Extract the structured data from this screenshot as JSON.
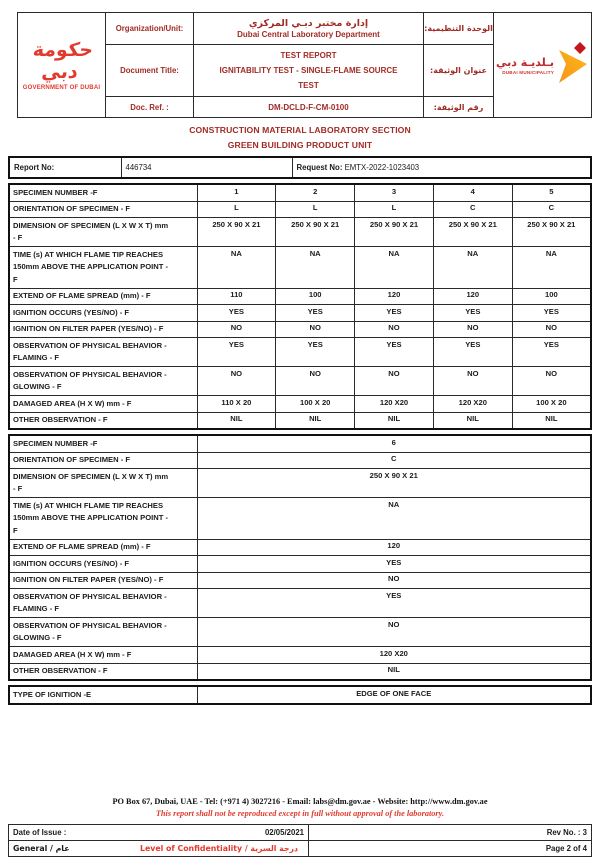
{
  "colors": {
    "brand_dark_red": "#A12B25",
    "bright_red": "#E23A2E",
    "municipality_red": "#C0272D",
    "arrow_orange": "#F7941E",
    "arrow_yellow": "#FDB913",
    "text_black": "#1B1B1B"
  },
  "header": {
    "gov_logo": {
      "arabic": "حكومة دبي",
      "english": "GOVERNMENT OF DUBAI"
    },
    "org_label": "Organization/Unit:",
    "org_value_ar": "إدارة مختبر دبـي المركزي",
    "org_value_en": "Dubai Central Laboratory Department",
    "org_label_ar": "الوحدة التنظيمية:",
    "title_label": "Document Title:",
    "title_value": "TEST REPORT\nIGNITABILITY TEST - SINGLE-FLAME SOURCE\nTEST",
    "title_label_ar": "عنوان الوثيقة:",
    "ref_label": "Doc. Ref. :",
    "ref_value": "DM-DCLD-F-CM-0100",
    "ref_label_ar": "رقم الوثيقة:",
    "municipality_logo": {
      "arabic": "بـلديـة دبي",
      "english": "DUBAI MUNICIPALITY"
    }
  },
  "section_titles": {
    "line1": "CONSTRUCTION MATERIAL LABORATORY SECTION",
    "line2": "GREEN BUILDING PRODUCT UNIT"
  },
  "report_info": {
    "report_label": "Report No:",
    "report_value": "446734",
    "request_label": "Request No:",
    "request_value": "EMTX-2022-1023403"
  },
  "specimen_table_multi": {
    "rows": [
      {
        "label": "SPECIMEN NUMBER -F",
        "values": [
          "1",
          "2",
          "3",
          "4",
          "5"
        ]
      },
      {
        "label": "ORIENTATION OF SPECIMEN - F",
        "values": [
          "L",
          "L",
          "L",
          "C",
          "C"
        ]
      },
      {
        "label": "DIMENSION OF SPECIMEN (L X W X T) mm\n- F",
        "values": [
          "250 X 90 X 21",
          "250 X 90 X 21",
          "250 X 90 X 21",
          "250 X 90 X 21",
          "250 X 90 X 21"
        ]
      },
      {
        "label": "TIME (s) AT WHICH FLAME TIP REACHES\n150mm ABOVE THE APPLICATION POINT -\nF",
        "values": [
          "NA",
          "NA",
          "NA",
          "NA",
          "NA"
        ]
      },
      {
        "label": "EXTEND OF FLAME SPREAD (mm) - F",
        "values": [
          "110",
          "100",
          "120",
          "120",
          "100"
        ]
      },
      {
        "label": "IGNITION OCCURS (YES/NO) - F",
        "values": [
          "YES",
          "YES",
          "YES",
          "YES",
          "YES"
        ]
      },
      {
        "label": "IGNITION ON FILTER PAPER (YES/NO) - F",
        "values": [
          "NO",
          "NO",
          "NO",
          "NO",
          "NO"
        ]
      },
      {
        "label": "OBSERVATION OF PHYSICAL BEHAVIOR -\nFLAMING - F",
        "values": [
          "YES",
          "YES",
          "YES",
          "YES",
          "YES"
        ]
      },
      {
        "label": "OBSERVATION OF PHYSICAL BEHAVIOR -\nGLOWING - F",
        "values": [
          "NO",
          "NO",
          "NO",
          "NO",
          "NO"
        ]
      },
      {
        "label": "DAMAGED AREA (H X W) mm - F",
        "values": [
          "110 X 20",
          "100 X 20",
          "120 X20",
          "120 X20",
          "100 X 20"
        ]
      },
      {
        "label": "OTHER OBSERVATION - F",
        "values": [
          "NIL",
          "NIL",
          "NIL",
          "NIL",
          "NIL"
        ]
      }
    ]
  },
  "specimen_table_single": {
    "rows": [
      {
        "label": "SPECIMEN NUMBER -F",
        "value": "6"
      },
      {
        "label": "ORIENTATION OF SPECIMEN - F",
        "value": "C"
      },
      {
        "label": "DIMENSION OF SPECIMEN (L X W X T) mm\n- F",
        "value": "250 X 90 X 21"
      },
      {
        "label": "TIME (s) AT WHICH FLAME TIP REACHES\n150mm ABOVE THE APPLICATION POINT -\nF",
        "value": "NA"
      },
      {
        "label": "EXTEND OF FLAME SPREAD (mm) - F",
        "value": "120"
      },
      {
        "label": "IGNITION OCCURS (YES/NO) - F",
        "value": "YES"
      },
      {
        "label": "IGNITION ON FILTER PAPER (YES/NO) - F",
        "value": "NO"
      },
      {
        "label": "OBSERVATION OF PHYSICAL BEHAVIOR -\nFLAMING - F",
        "value": "YES"
      },
      {
        "label": "OBSERVATION OF PHYSICAL BEHAVIOR -\nGLOWING - F",
        "value": "NO"
      },
      {
        "label": "DAMAGED AREA (H X W) mm - F",
        "value": "120 X20"
      },
      {
        "label": "OTHER OBSERVATION - F",
        "value": "NIL"
      }
    ]
  },
  "ignition_table": {
    "label": "TYPE OF IGNITION -E",
    "value": "EDGE OF ONE FACE"
  },
  "footer": {
    "contact": "PO Box 67, Dubai, UAE - Tel: (+971 4) 3027216 - Email: labs@dm.gov.ae - Website: http://www.dm.gov.ae",
    "disclaimer": "This report shall not be reproduced except in full without approval of the laboratory.",
    "date_label": "Date of Issue :",
    "date_value": "02/05/2021",
    "rev_value": "Rev No. : 3",
    "confidentiality_left": "General / عام",
    "confidentiality_label": "Level of Confidentiality  /  درجة السرية",
    "page_value": "Page 2 of 4"
  }
}
